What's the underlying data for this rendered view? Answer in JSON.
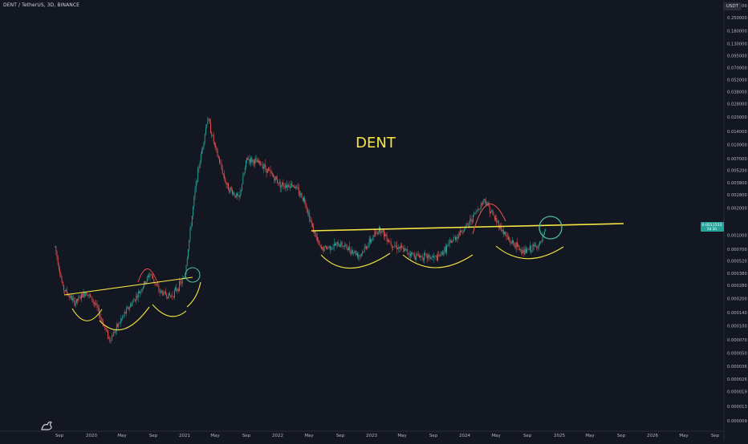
{
  "header": {
    "symbol": "DENT / TetherUS, 3D, BINANCE",
    "currency": "USDT"
  },
  "annotation": {
    "text": "DENT",
    "color": "#f5e642"
  },
  "price_tag": {
    "line1": "0.0011553",
    "line2": "5d 3h",
    "color": "#26a69a"
  },
  "chart_data": {
    "type": "candlestick",
    "title": "",
    "scale": "log",
    "y_tick_labels": [
      "0.340000",
      "0.250000",
      "0.180000",
      "0.130000",
      "0.095000",
      "0.070000",
      "0.052000",
      "0.038000",
      "0.028000",
      "0.020000",
      "0.014000",
      "0.010000",
      "0.007000",
      "0.005200",
      "0.003800",
      "0.002800",
      "0.002000",
      "0.001000",
      "0.000700",
      "0.000520",
      "0.000380",
      "0.000280",
      "0.000200",
      "0.000140",
      "0.000100",
      "0.000070",
      "0.000050",
      "0.000036",
      "0.000026",
      "0.000019",
      "0.000013",
      "0.000009"
    ],
    "x_tick_labels": [
      "Sep",
      "2020",
      "May",
      "Sep",
      "2021",
      "May",
      "Sep",
      "2022",
      "May",
      "Sep",
      "2023",
      "May",
      "Sep",
      "2024",
      "May",
      "Sep",
      "2025",
      "May",
      "Sep",
      "2026",
      "May",
      "Sep"
    ],
    "price_path": [
      {
        "date": "2019-08-15",
        "price": 0.00075
      },
      {
        "date": "2019-09-15",
        "price": 0.00026
      },
      {
        "date": "2019-11-01",
        "price": 0.00018
      },
      {
        "date": "2019-12-15",
        "price": 0.00024
      },
      {
        "date": "2020-01-20",
        "price": 0.00017
      },
      {
        "date": "2020-03-15",
        "price": 7e-05
      },
      {
        "date": "2020-05-15",
        "price": 0.00014
      },
      {
        "date": "2020-07-15",
        "price": 0.00025
      },
      {
        "date": "2020-08-20",
        "price": 0.00038
      },
      {
        "date": "2020-09-25",
        "price": 0.00024
      },
      {
        "date": "2020-11-10",
        "price": 0.00021
      },
      {
        "date": "2021-01-01",
        "price": 0.00034
      },
      {
        "date": "2021-02-15",
        "price": 0.0038
      },
      {
        "date": "2021-04-01",
        "price": 0.02
      },
      {
        "date": "2021-05-01",
        "price": 0.009
      },
      {
        "date": "2021-06-15",
        "price": 0.0035
      },
      {
        "date": "2021-08-01",
        "price": 0.0025
      },
      {
        "date": "2021-09-01",
        "price": 0.007
      },
      {
        "date": "2021-11-01",
        "price": 0.006
      },
      {
        "date": "2022-01-10",
        "price": 0.0036
      },
      {
        "date": "2022-03-01",
        "price": 0.0036
      },
      {
        "date": "2022-04-15",
        "price": 0.0024
      },
      {
        "date": "2022-05-15",
        "price": 0.0012
      },
      {
        "date": "2022-06-15",
        "price": 0.0007
      },
      {
        "date": "2022-09-01",
        "price": 0.0008
      },
      {
        "date": "2022-11-15",
        "price": 0.0006
      },
      {
        "date": "2023-02-01",
        "price": 0.0012
      },
      {
        "date": "2023-03-20",
        "price": 0.0008
      },
      {
        "date": "2023-06-15",
        "price": 0.0006
      },
      {
        "date": "2023-09-15",
        "price": 0.00056
      },
      {
        "date": "2023-11-15",
        "price": 0.0009
      },
      {
        "date": "2024-01-10",
        "price": 0.0013
      },
      {
        "date": "2024-03-15",
        "price": 0.0025
      },
      {
        "date": "2024-04-20",
        "price": 0.0016
      },
      {
        "date": "2024-06-15",
        "price": 0.0009
      },
      {
        "date": "2024-08-15",
        "price": 0.00065
      },
      {
        "date": "2024-10-20",
        "price": 0.0008
      },
      {
        "date": "2024-11-10",
        "price": 0.0011553
      }
    ]
  }
}
